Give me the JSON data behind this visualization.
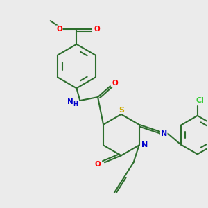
{
  "bg_color": "#ebebeb",
  "bond_color": "#2d6e2d",
  "atom_colors": {
    "N": "#0000cc",
    "O": "#ff0000",
    "S": "#ccaa00",
    "Cl": "#33cc33",
    "NH": "#0000cc"
  },
  "line_width": 1.5,
  "figsize": [
    3.0,
    3.0
  ],
  "dpi": 100
}
